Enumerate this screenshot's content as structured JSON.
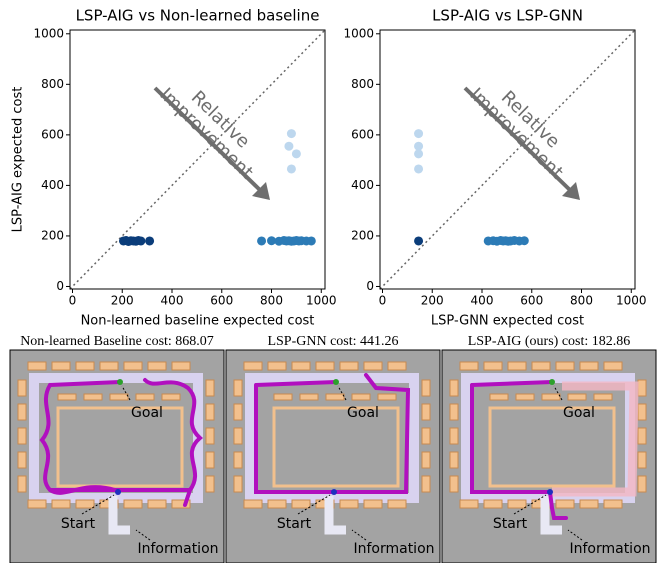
{
  "chart_data": [
    {
      "type": "scatter",
      "title": "LSP-AIG vs Non-learned baseline",
      "x_label": "Non-learned baseline expected cost",
      "y_label": "LSP-AIG expected cost",
      "annotation": [
        "Relative",
        "Improvement"
      ],
      "diagonal": true,
      "xlim": [
        -10,
        1015
      ],
      "ylim": [
        -10,
        1015
      ],
      "xticks": [
        0,
        200,
        400,
        600,
        800,
        1000
      ],
      "yticks": [
        0,
        200,
        400,
        600,
        800,
        1000
      ],
      "series": [
        {
          "color": "#0b3d7a",
          "x": [
            205,
            215,
            225,
            235,
            245,
            255,
            265,
            275,
            310
          ],
          "values": [
            180,
            182,
            178,
            181,
            180,
            179,
            182,
            180,
            180
          ]
        },
        {
          "color": "#2c7bb6",
          "x": [
            760,
            800,
            830,
            850,
            860,
            870,
            880,
            890,
            900,
            910,
            920,
            940,
            960
          ],
          "values": [
            180,
            181,
            179,
            182,
            180,
            181,
            179,
            180,
            182,
            180,
            181,
            180,
            180
          ]
        },
        {
          "color": "#bdd7ee",
          "x": [
            880,
            870,
            900,
            880
          ],
          "values": [
            605,
            555,
            525,
            465
          ]
        }
      ]
    },
    {
      "type": "scatter",
      "title": "LSP-AIG vs LSP-GNN",
      "x_label": "LSP-GNN expected cost",
      "annotation": [
        "Relative",
        "Improvement"
      ],
      "diagonal": true,
      "xlim": [
        -10,
        1015
      ],
      "ylim": [
        -10,
        1015
      ],
      "xticks": [
        0,
        200,
        400,
        600,
        800,
        1000
      ],
      "yticks": [
        0,
        200,
        400,
        600,
        800,
        1000
      ],
      "series": [
        {
          "color": "#bdd7ee",
          "x": [
            145,
            145,
            145,
            145
          ],
          "values": [
            605,
            555,
            525,
            465
          ]
        },
        {
          "color": "#0b3d7a",
          "x": [
            145
          ],
          "values": [
            180
          ]
        },
        {
          "color": "#2c7bb6",
          "x": [
            425,
            445,
            460,
            475,
            485,
            495,
            505,
            515,
            530,
            550,
            570
          ],
          "values": [
            180,
            181,
            179,
            182,
            180,
            181,
            179,
            180,
            182,
            180,
            181
          ]
        }
      ]
    }
  ],
  "maps": [
    {
      "title": "Non-learned Baseline cost: 868.07",
      "goal": "Goal",
      "start": "Start",
      "information": "Information"
    },
    {
      "title": "LSP-GNN cost: 441.26",
      "goal": "Goal",
      "start": "Start",
      "information": "Information"
    },
    {
      "title": "LSP-AIG (ours) cost: 182.86",
      "goal": "Goal",
      "start": "Start",
      "information": "Information"
    }
  ]
}
